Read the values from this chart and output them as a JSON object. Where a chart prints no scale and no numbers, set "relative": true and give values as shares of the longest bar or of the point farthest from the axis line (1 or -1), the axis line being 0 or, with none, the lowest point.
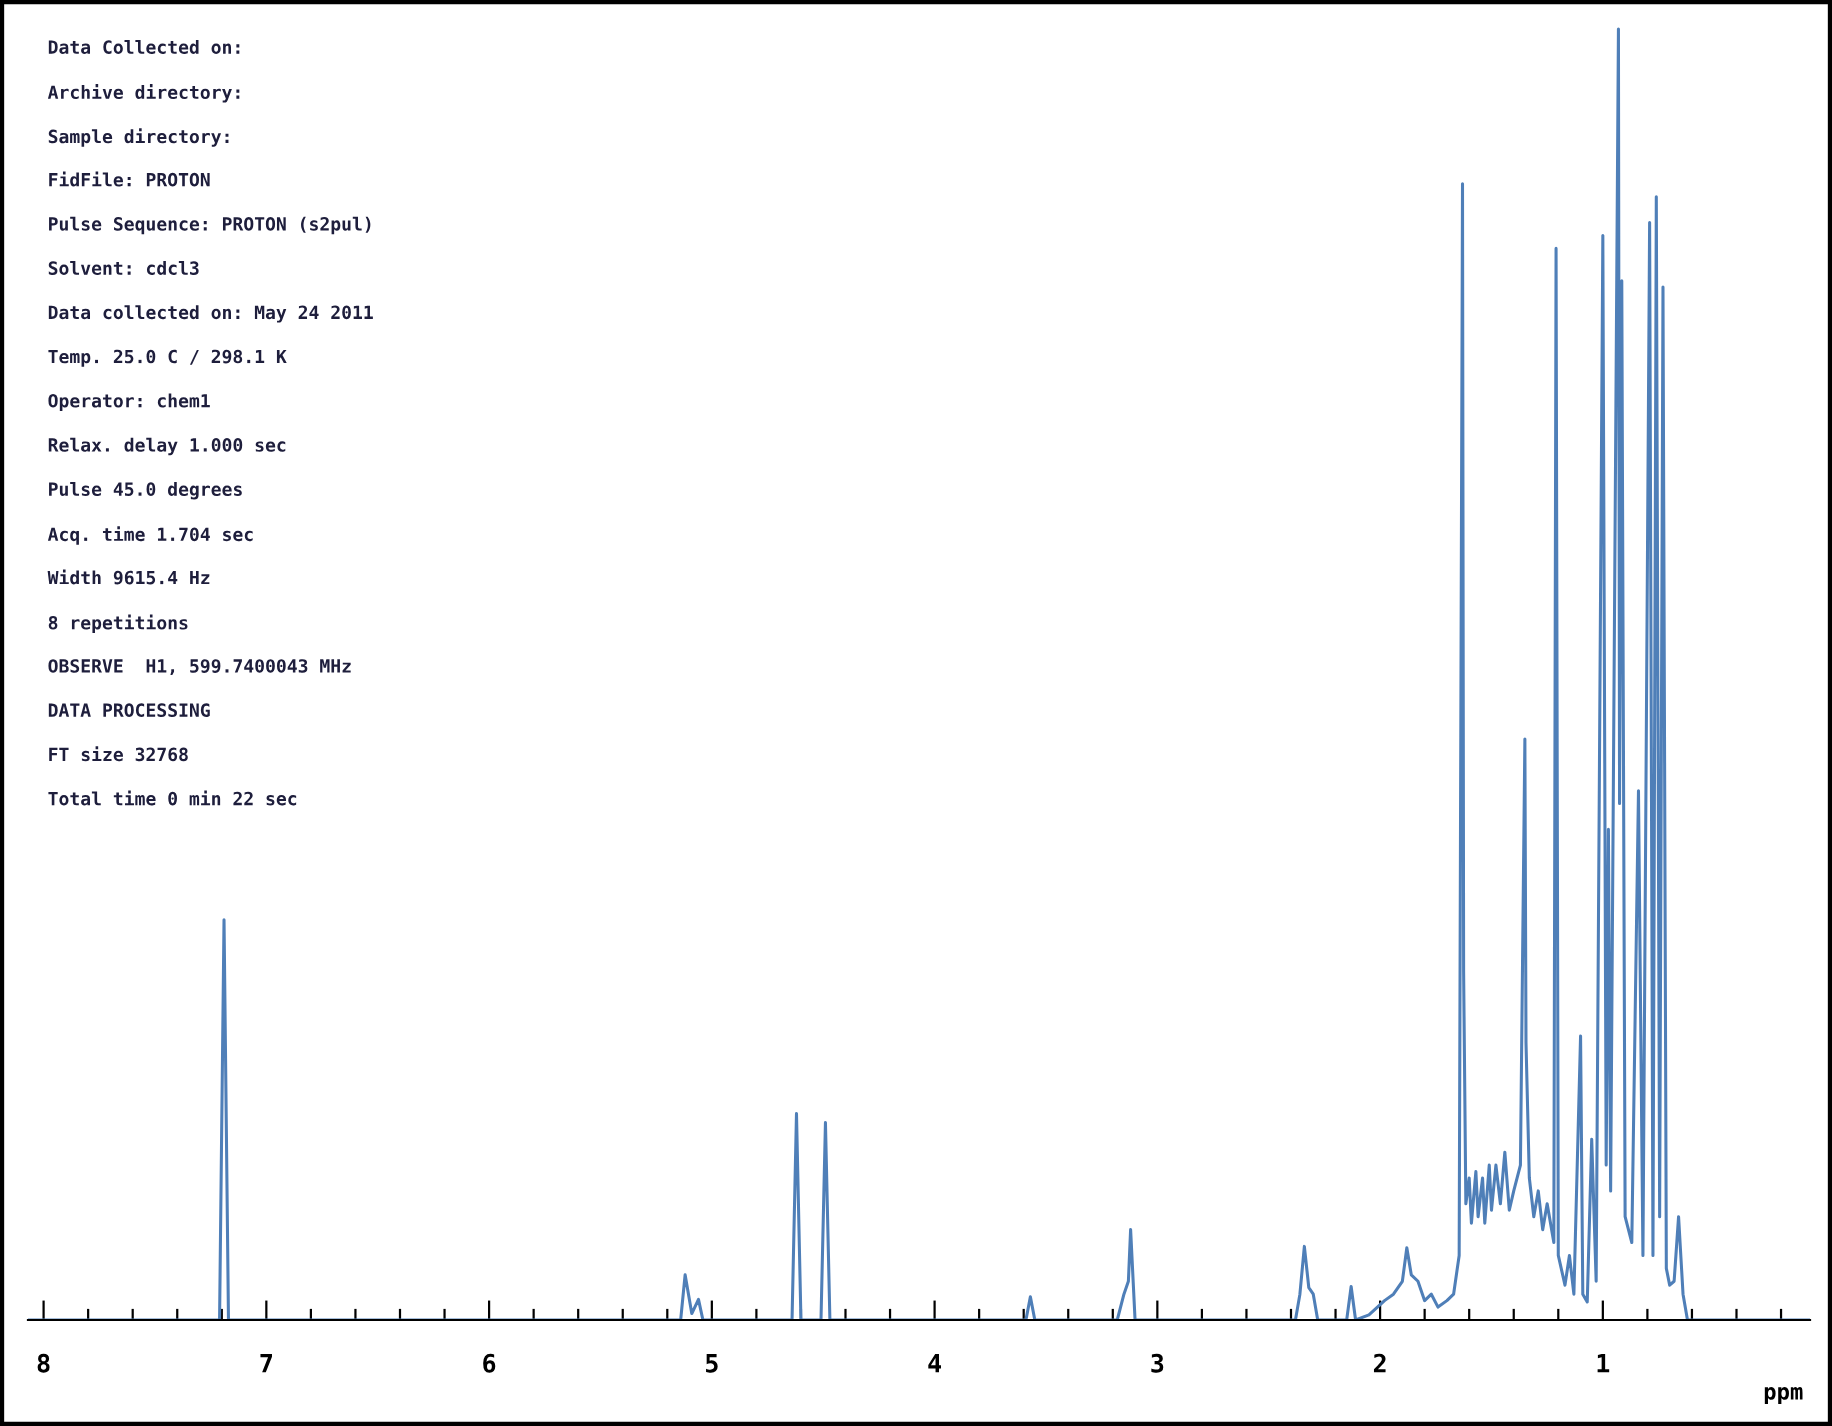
{
  "chart_data": {
    "type": "line",
    "relative": true,
    "xlabel": "ppm",
    "annotations": [
      "Data Collected on:",
      "Archive directory:",
      "Sample directory:",
      "FidFile: PROTON",
      "Pulse Sequence: PROTON (s2pul)",
      "Solvent: cdcl3",
      "Data collected on: May 24 2011",
      "Temp. 25.0 C / 298.1 K",
      "Operator: chem1",
      "Relax. delay 1.000 sec",
      "Pulse 45.0 degrees",
      "Acq. time 1.704 sec",
      "Width 9615.4 Hz",
      "8 repetitions",
      "OBSERVE  H1, 599.7400043 MHz",
      "DATA PROCESSING",
      "FT size 32768",
      "Total time 0 min 22 sec"
    ],
    "xlim": [
      8.07,
      0.07
    ],
    "xticks": [
      8,
      {
        "value": 7.8,
        "label": null
      },
      {
        "value": 7.6,
        "label": null
      },
      {
        "value": 7.4,
        "label": null
      },
      {
        "value": 7.2,
        "label": null
      },
      7,
      {
        "value": 6.8,
        "label": null
      },
      {
        "value": 6.6,
        "label": null
      },
      {
        "value": 6.4,
        "label": null
      },
      {
        "value": 6.2,
        "label": null
      },
      6,
      {
        "value": 5.8,
        "label": null
      },
      {
        "value": 5.6,
        "label": null
      },
      {
        "value": 5.4,
        "label": null
      },
      {
        "value": 5.2,
        "label": null
      },
      5,
      {
        "value": 4.8,
        "label": null
      },
      {
        "value": 4.6,
        "label": null
      },
      {
        "value": 4.4,
        "label": null
      },
      {
        "value": 4.2,
        "label": null
      },
      4,
      {
        "value": 3.8,
        "label": null
      },
      {
        "value": 3.6,
        "label": null
      },
      {
        "value": 3.4,
        "label": null
      },
      {
        "value": 3.2,
        "label": null
      },
      3,
      {
        "value": 2.8,
        "label": null
      },
      {
        "value": 2.6,
        "label": null
      },
      {
        "value": 2.4,
        "label": null
      },
      {
        "value": 2.2,
        "label": null
      },
      2,
      {
        "value": 1.8,
        "label": null
      },
      {
        "value": 1.6,
        "label": null
      },
      {
        "value": 1.4,
        "label": null
      },
      {
        "value": 1.2,
        "label": null
      },
      1,
      {
        "value": 0.8,
        "label": null
      },
      {
        "value": 0.6,
        "label": null
      },
      {
        "value": 0.4,
        "label": null
      },
      {
        "value": 0.2,
        "label": null
      }
    ],
    "grid": false,
    "series": [
      {
        "color": "#4f7fb8",
        "x": [
          8.07,
          7.21,
          7.19,
          7.17,
          5.14,
          5.12,
          5.09,
          5.06,
          5.04,
          4.64,
          4.62,
          4.6,
          4.51,
          4.49,
          4.47,
          3.59,
          3.57,
          3.55,
          3.18,
          3.15,
          3.13,
          3.12,
          3.1,
          2.38,
          2.36,
          2.34,
          2.32,
          2.3,
          2.28,
          2.15,
          2.13,
          2.11,
          2.05,
          1.98,
          1.94,
          1.9,
          1.88,
          1.86,
          1.83,
          1.8,
          1.77,
          1.74,
          1.7,
          1.67,
          1.645,
          1.63,
          1.625,
          1.615,
          1.6,
          1.59,
          1.57,
          1.56,
          1.54,
          1.53,
          1.51,
          1.5,
          1.48,
          1.46,
          1.44,
          1.42,
          1.4,
          1.37,
          1.35,
          1.345,
          1.33,
          1.31,
          1.29,
          1.27,
          1.25,
          1.22,
          1.21,
          1.2,
          1.17,
          1.15,
          1.13,
          1.1,
          1.09,
          1.07,
          1.05,
          1.03,
          1.0,
          0.985,
          0.975,
          0.965,
          0.93,
          0.925,
          0.915,
          0.9,
          0.87,
          0.84,
          0.82,
          0.79,
          0.775,
          0.76,
          0.745,
          0.73,
          0.715,
          0.7,
          0.68,
          0.66,
          0.64,
          0.62,
          0.07
        ],
        "values": [
          0,
          0,
          0.31,
          0,
          0,
          0.035,
          0.005,
          0.016,
          0,
          0,
          0.16,
          0,
          0,
          0.153,
          0,
          0,
          0.018,
          0,
          0,
          0.02,
          0.03,
          0.07,
          0,
          0,
          0.02,
          0.057,
          0.025,
          0.02,
          0,
          0,
          0.026,
          0,
          0.004,
          0.015,
          0.02,
          0.03,
          0.056,
          0.035,
          0.03,
          0.015,
          0.02,
          0.01,
          0.015,
          0.02,
          0.05,
          0.88,
          0.27,
          0.09,
          0.11,
          0.075,
          0.115,
          0.08,
          0.11,
          0.075,
          0.12,
          0.085,
          0.12,
          0.09,
          0.13,
          0.085,
          0.1,
          0.12,
          0.45,
          0.215,
          0.11,
          0.08,
          0.1,
          0.07,
          0.09,
          0.06,
          0.83,
          0.05,
          0.027,
          0.05,
          0.02,
          0.22,
          0.02,
          0.014,
          0.14,
          0.03,
          0.84,
          0.12,
          0.38,
          0.1,
          1.0,
          0.4,
          0.805,
          0.08,
          0.06,
          0.41,
          0.05,
          0.85,
          0.05,
          0.87,
          0.08,
          0.8,
          0.04,
          0.027,
          0.03,
          0.08,
          0.02,
          0,
          0
        ]
      }
    ]
  }
}
